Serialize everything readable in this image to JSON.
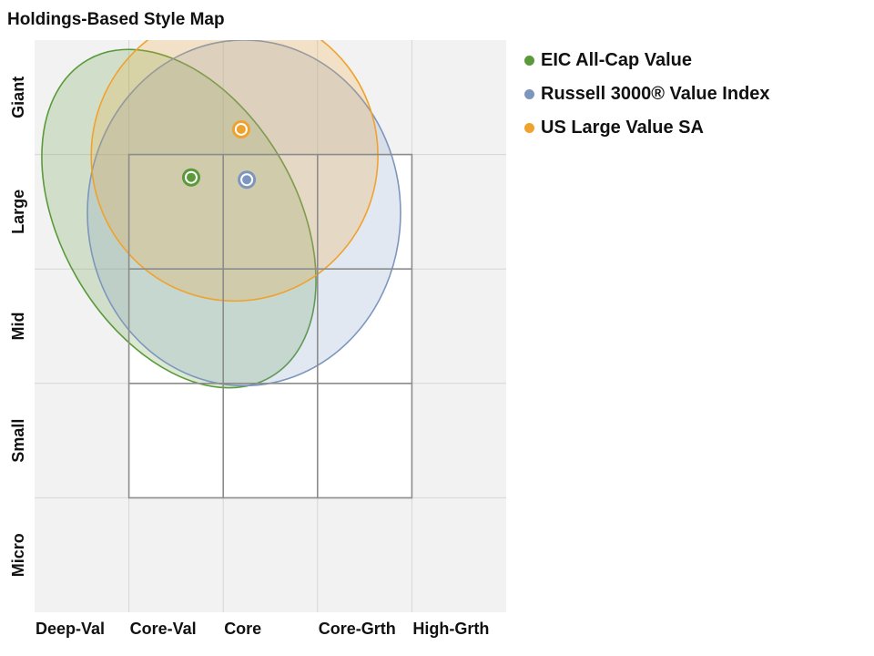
{
  "chart_data": {
    "type": "scatter",
    "title": "Holdings-Based Style Map",
    "x_categories": [
      "Deep-Val",
      "Core-Val",
      "Core",
      "Core-Grth",
      "High-Grth"
    ],
    "y_categories": [
      "Giant",
      "Large",
      "Mid",
      "Small",
      "Micro"
    ],
    "xlim": [
      -2.5,
      2.5
    ],
    "ylim": [
      -2.5,
      2.5
    ],
    "style_box": {
      "x_range": [
        -1.5,
        1.5
      ],
      "y_range": [
        -1.5,
        1.5
      ]
    },
    "grid": true,
    "legend_position": "top-right",
    "series": [
      {
        "name": "EIC All-Cap Value",
        "color": "#5a9a3a",
        "centroid": [
          -0.84,
          1.3
        ],
        "ellipse": {
          "center": [
            -0.97,
            0.94
          ],
          "rx": 1.25,
          "ry": 1.6,
          "rotation_deg": -30
        }
      },
      {
        "name": "Russell 3000® Value Index",
        "color": "#7d96bd",
        "centroid": [
          -0.25,
          1.28
        ],
        "ellipse": {
          "center": [
            -0.28,
            0.99
          ],
          "rx": 1.66,
          "ry": 1.51,
          "rotation_deg": 0
        }
      },
      {
        "name": "US Large Value SA",
        "color": "#f0a22e",
        "centroid": [
          -0.31,
          1.72
        ],
        "ellipse": {
          "center": [
            -0.38,
            1.49
          ],
          "rx": 1.52,
          "ry": 1.27,
          "rotation_deg": 0
        }
      }
    ]
  }
}
